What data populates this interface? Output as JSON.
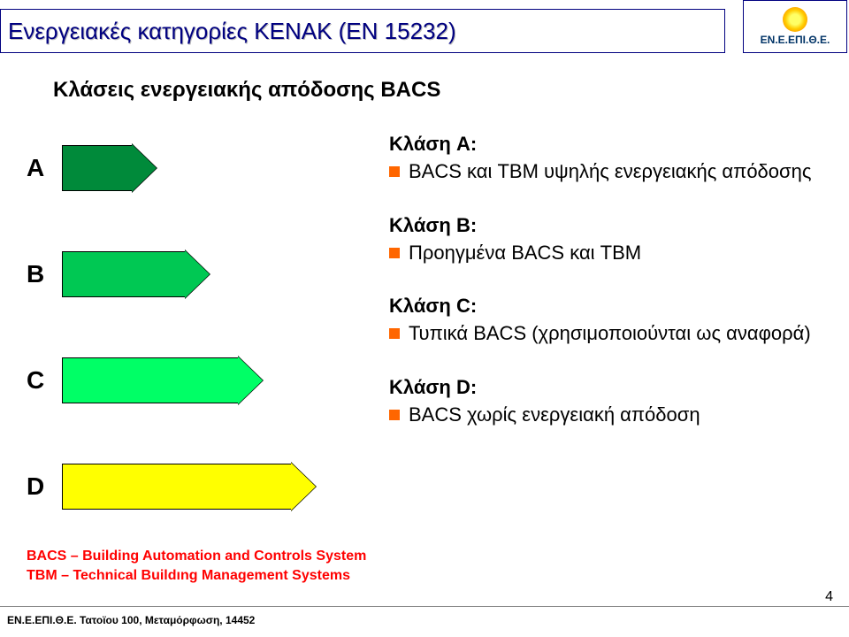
{
  "title": "Ενεργειακές κατηγορίες ΚΕΝΑΚ (EN 15232)",
  "logo_text": "ΕΝ.Ε.ΕΠΙ.Θ.Ε.",
  "subtitle": "Κλάσεις ενεργειακής απόδοσης BACS",
  "arrows": {
    "A": {
      "label": "A",
      "color": "#008a3a",
      "body_width": 80
    },
    "B": {
      "label": "B",
      "color": "#00c853",
      "body_width": 140
    },
    "C": {
      "label": "C",
      "color": "#00ff66",
      "body_width": 200
    },
    "D": {
      "label": "D",
      "color": "#ffff00",
      "body_width": 260
    }
  },
  "classes": {
    "A": {
      "title": "Κλάση A:",
      "text": "BACS και TBM υψηλής ενεργειακής απόδοσης"
    },
    "B": {
      "title": "Κλάση B:",
      "text": "Προηγμένα BACS και TBM"
    },
    "C": {
      "title": "Κλάση C:",
      "text": "Τυπικά BACS (χρησιμοποιούνται ως αναφορά)"
    },
    "D": {
      "title": "Κλάση D:",
      "text": "BACS χωρίς ενεργειακή απόδοση"
    }
  },
  "bullet_color": "#ff6600",
  "defs": {
    "line1": "BACS – Building Automation and Controls System",
    "line2": "TBM – Technical Buildıng Management Systems"
  },
  "footer_addr": "ΕΝ.Ε.ΕΠΙ.Θ.Ε. Τατοϊου 100, Μεταμόρφωση, 14452",
  "page_number": "4"
}
